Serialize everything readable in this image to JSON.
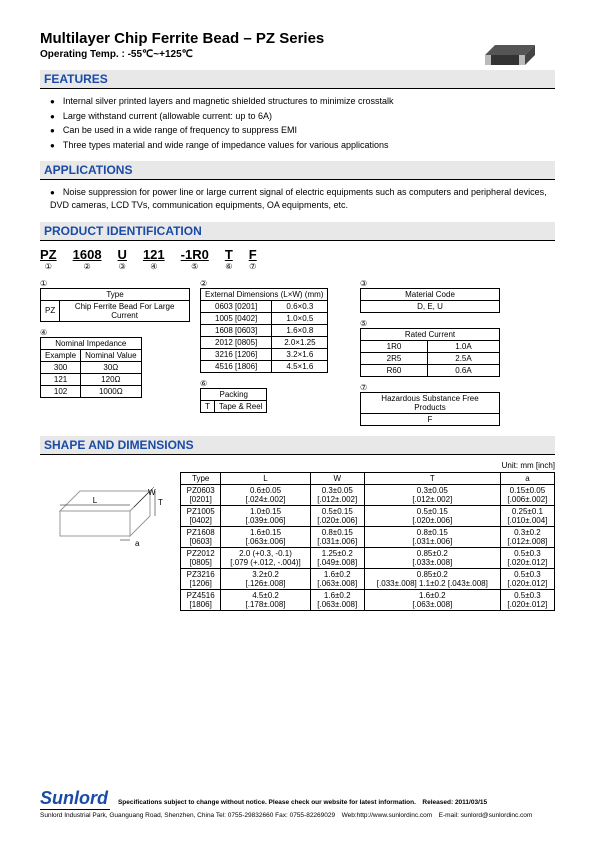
{
  "title": "Multilayer Chip Ferrite Bead – PZ Series",
  "subtitle": "Operating Temp. : -55℃~+125℃",
  "sections": {
    "features": "FEATURES",
    "applications": "APPLICATIONS",
    "product_id": "PRODUCT IDENTIFICATION",
    "shape": "SHAPE AND DIMENSIONS"
  },
  "features": [
    "Internal silver printed layers and magnetic shielded structures to minimize crosstalk",
    "Large withstand current (allowable current: up to 6A)",
    "Can be used in a wide range of frequency to suppress EMI",
    "Three types material and wide range of impedance values for various applications"
  ],
  "applications": [
    "Noise suppression for power line or large current signal of electric equipments such as computers and peripheral devices, DVD cameras, LCD TVs, communication equipments, OA equipments, etc."
  ],
  "id_parts": [
    {
      "main": "PZ",
      "num": "①"
    },
    {
      "main": "1608",
      "num": "②"
    },
    {
      "main": "U",
      "num": "③"
    },
    {
      "main": "121",
      "num": "④"
    },
    {
      "main": "-1R0",
      "num": "⑤"
    },
    {
      "main": "T",
      "num": "⑥"
    },
    {
      "main": "F",
      "num": "⑦"
    }
  ],
  "tbl_type": {
    "num": "①",
    "header": "Type",
    "rows": [
      [
        "PZ",
        "Chip Ferrite Bead For Large Current"
      ]
    ]
  },
  "tbl_dims": {
    "num": "②",
    "header": "External Dimensions (L×W) (mm)",
    "rows": [
      [
        "0603 [0201]",
        "0.6×0.3"
      ],
      [
        "1005 [0402]",
        "1.0×0.5"
      ],
      [
        "1608 [0603]",
        "1.6×0.8"
      ],
      [
        "2012 [0805]",
        "2.0×1.25"
      ],
      [
        "3216 [1206]",
        "3.2×1.6"
      ],
      [
        "4516 [1806]",
        "4.5×1.6"
      ]
    ]
  },
  "tbl_mat": {
    "num": "③",
    "header": "Material Code",
    "rows": [
      [
        "D, E, U"
      ]
    ]
  },
  "tbl_imp": {
    "num": "④",
    "header": "Nominal Impedance",
    "sub": [
      "Example",
      "Nominal Value"
    ],
    "rows": [
      [
        "300",
        "30Ω"
      ],
      [
        "121",
        "120Ω"
      ],
      [
        "102",
        "1000Ω"
      ]
    ]
  },
  "tbl_cur": {
    "num": "⑤",
    "header": "Rated Current",
    "rows": [
      [
        "1R0",
        "1.0A"
      ],
      [
        "2R5",
        "2.5A"
      ],
      [
        "R60",
        "0.6A"
      ]
    ]
  },
  "tbl_pack": {
    "num": "⑥",
    "header": "Packing",
    "rows": [
      [
        "T",
        "Tape & Reel"
      ]
    ]
  },
  "tbl_haz": {
    "num": "⑦",
    "header": "Hazardous Substance Free Products",
    "rows": [
      [
        "F"
      ]
    ]
  },
  "unit_label": "Unit: mm [inch]",
  "dims_header": [
    "Type",
    "L",
    "W",
    "T",
    "a"
  ],
  "dims_rows": [
    [
      "PZ0603 [0201]",
      "0.6±0.05 [.024±.002]",
      "0.3±0.05 [.012±.002]",
      "0.3±0.05 [.012±.002]",
      "0.15±0.05 [.006±.002]"
    ],
    [
      "PZ1005 [0402]",
      "1.0±0.15 [.039±.006]",
      "0.5±0.15 [.020±.006]",
      "0.5±0.15 [.020±.006]",
      "0.25±0.1 [.010±.004]"
    ],
    [
      "PZ1608 [0603]",
      "1.6±0.15 [.063±.006]",
      "0.8±0.15 [.031±.006]",
      "0.8±0.15 [.031±.006]",
      "0.3±0.2 [.012±.008]"
    ],
    [
      "PZ2012 [0805]",
      "2.0 (+0.3, -0.1) [.079 (+.012, -.004)]",
      "1.25±0.2 [.049±.008]",
      "0.85±0.2 [.033±.008]",
      "0.5±0.3 [.020±.012]"
    ],
    [
      "PZ3216 [1206]",
      "3.2±0.2 [.126±.008]",
      "1.6±0.2 [.063±.008]",
      "0.85±0.2 [.033±.008] 1.1±0.2 [.043±.008]",
      "0.5±0.3 [.020±.012]"
    ],
    [
      "PZ4516 [1806]",
      "4.5±0.2 [.178±.008]",
      "1.6±0.2 [.063±.008]",
      "1.6±0.2 [.063±.008]",
      "0.5±0.3 [.020±.012]"
    ]
  ],
  "footer": {
    "brand": "Sunlord",
    "spec_note": "Specifications subject to change without notice. Please check our website for latest information.　Released: 2011/03/15",
    "contact": "Sunlord Industrial Park, Guanguang Road, Shenzhen, China Tel: 0755-29832660 Fax: 0755-82269029　Web:http://www.sunlordinc.com　E-mail: sunlord@sunlordinc.com"
  }
}
